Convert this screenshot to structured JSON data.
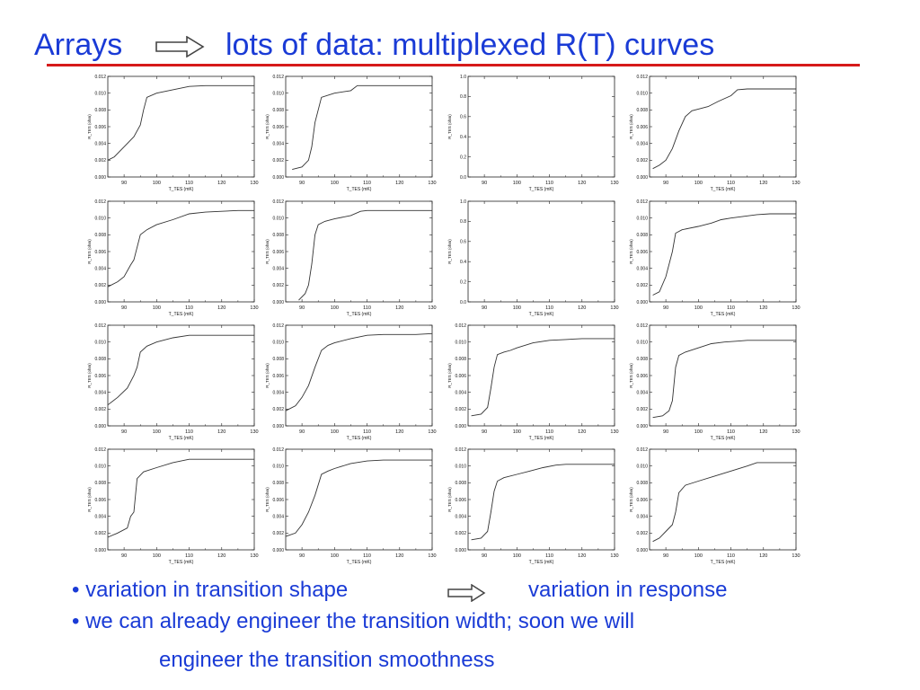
{
  "slide": {
    "title_left": "Arrays",
    "title_right": "lots of data: multiplexed R(T) curves",
    "bullet1_left": "• variation in transition shape",
    "bullet1_right": "variation in response",
    "bullet2": "• we can already engineer the transition width; soon we will",
    "bullet2_cont": "engineer the transition smoothness",
    "accent_color": "#1a3bd6",
    "rule_color": "#d61a1a",
    "arrow_icon": "right-arrow-icon"
  },
  "chart_data": [
    {
      "type": "line",
      "xlabel": "T_TES (mK)",
      "ylabel": "R_TES (ohm)",
      "xlim": [
        85,
        130
      ],
      "ylim": [
        0,
        0.012
      ],
      "xticks": [
        "90",
        "100",
        "110",
        "120",
        "130"
      ],
      "yticks": [
        "0.000",
        "0.002",
        "0.004",
        "0.006",
        "0.008",
        "0.010",
        "0.012"
      ],
      "x": [
        85,
        87,
        90,
        93,
        95,
        96,
        97,
        100,
        105,
        110,
        115,
        120,
        125,
        130
      ],
      "y": [
        0.002,
        0.0024,
        0.0036,
        0.0048,
        0.0062,
        0.008,
        0.0095,
        0.01,
        0.0104,
        0.0108,
        0.0109,
        0.0109,
        0.0109,
        0.0109
      ]
    },
    {
      "type": "line",
      "xlabel": "T_TES (mK)",
      "ylabel": "R_TES (ohm)",
      "xlim": [
        85,
        130
      ],
      "ylim": [
        0,
        0.012
      ],
      "xticks": [
        "90",
        "100",
        "110",
        "120",
        "130"
      ],
      "yticks": [
        "0.000",
        "0.002",
        "0.004",
        "0.006",
        "0.008",
        "0.010",
        "0.012"
      ],
      "x": [
        87,
        90,
        92,
        93,
        94,
        96,
        100,
        105,
        107,
        110,
        115,
        120,
        125,
        130
      ],
      "y": [
        0.0009,
        0.0012,
        0.002,
        0.0036,
        0.0065,
        0.0095,
        0.01,
        0.0103,
        0.0109,
        0.0109,
        0.0109,
        0.0109,
        0.0109,
        0.0109
      ]
    },
    {
      "type": "line",
      "xlabel": "T_TES (mK)",
      "ylabel": "R_TES (ohm)",
      "xlim": [
        85,
        130
      ],
      "ylim": [
        0,
        1.0
      ],
      "xticks": [
        "90",
        "100",
        "110",
        "120",
        "130"
      ],
      "yticks": [
        "0.0",
        "0.2",
        "0.4",
        "0.6",
        "0.8",
        "1.0"
      ],
      "x": [],
      "y": []
    },
    {
      "type": "line",
      "xlabel": "T_TES (mK)",
      "ylabel": "R_TES (ohm)",
      "xlim": [
        85,
        130
      ],
      "ylim": [
        0,
        0.012
      ],
      "xticks": [
        "90",
        "100",
        "110",
        "120",
        "130"
      ],
      "yticks": [
        "0.000",
        "0.002",
        "0.004",
        "0.006",
        "0.008",
        "0.010",
        "0.012"
      ],
      "x": [
        86,
        88,
        90,
        92,
        94,
        96,
        98,
        100,
        103,
        106,
        110,
        112,
        115,
        120,
        125,
        130
      ],
      "y": [
        0.001,
        0.0014,
        0.002,
        0.0034,
        0.0055,
        0.0072,
        0.0079,
        0.0081,
        0.0084,
        0.009,
        0.0097,
        0.0104,
        0.0105,
        0.0105,
        0.0105,
        0.0105
      ]
    },
    {
      "type": "line",
      "xlabel": "T_TES (mK)",
      "ylabel": "R_TES (ohm)",
      "xlim": [
        85,
        130
      ],
      "ylim": [
        0,
        0.012
      ],
      "xticks": [
        "90",
        "100",
        "110",
        "120",
        "130"
      ],
      "yticks": [
        "0.000",
        "0.002",
        "0.004",
        "0.006",
        "0.008",
        "0.010",
        "0.012"
      ],
      "x": [
        85,
        88,
        90,
        92,
        93,
        95,
        97,
        100,
        105,
        110,
        115,
        120,
        125,
        130
      ],
      "y": [
        0.0018,
        0.0024,
        0.003,
        0.0044,
        0.005,
        0.008,
        0.0086,
        0.0092,
        0.0098,
        0.0105,
        0.0107,
        0.0108,
        0.0109,
        0.0109
      ]
    },
    {
      "type": "line",
      "xlabel": "T_TES (mK)",
      "ylabel": "R_TES (ohm)",
      "xlim": [
        85,
        130
      ],
      "ylim": [
        0,
        0.012
      ],
      "xticks": [
        "90",
        "100",
        "110",
        "120",
        "130"
      ],
      "yticks": [
        "0.000",
        "0.002",
        "0.004",
        "0.006",
        "0.008",
        "0.010",
        "0.012"
      ],
      "x": [
        89,
        91,
        92,
        93,
        94,
        95,
        97,
        100,
        105,
        108,
        110,
        115,
        120,
        125,
        130
      ],
      "y": [
        0.0002,
        0.001,
        0.002,
        0.0045,
        0.008,
        0.0092,
        0.0096,
        0.0099,
        0.0103,
        0.0108,
        0.0109,
        0.0109,
        0.0109,
        0.0109,
        0.0109
      ]
    },
    {
      "type": "line",
      "xlabel": "T_TES (mK)",
      "ylabel": "R_TES (ohm)",
      "xlim": [
        85,
        130
      ],
      "ylim": [
        0,
        1.0
      ],
      "xticks": [
        "90",
        "100",
        "110",
        "120",
        "130"
      ],
      "yticks": [
        "0.0",
        "0.2",
        "0.4",
        "0.6",
        "0.8",
        "1.0"
      ],
      "x": [],
      "y": []
    },
    {
      "type": "line",
      "xlabel": "T_TES (mK)",
      "ylabel": "R_TES (ohm)",
      "xlim": [
        85,
        130
      ],
      "ylim": [
        0,
        0.012
      ],
      "xticks": [
        "90",
        "100",
        "110",
        "120",
        "130"
      ],
      "yticks": [
        "0.000",
        "0.002",
        "0.004",
        "0.006",
        "0.008",
        "0.010",
        "0.012"
      ],
      "x": [
        86,
        88,
        90,
        92,
        93,
        95,
        100,
        104,
        107,
        110,
        114,
        118,
        122,
        126,
        130
      ],
      "y": [
        0.0008,
        0.0012,
        0.003,
        0.006,
        0.0082,
        0.0086,
        0.009,
        0.0094,
        0.0098,
        0.01,
        0.0102,
        0.0104,
        0.0105,
        0.0105,
        0.0105
      ]
    },
    {
      "type": "line",
      "xlabel": "T_TES (mK)",
      "ylabel": "R_TES (ohm)",
      "xlim": [
        85,
        130
      ],
      "ylim": [
        0,
        0.012
      ],
      "xticks": [
        "90",
        "100",
        "110",
        "120",
        "130"
      ],
      "yticks": [
        "0.000",
        "0.002",
        "0.004",
        "0.006",
        "0.008",
        "0.010",
        "0.012"
      ],
      "x": [
        85,
        88,
        91,
        93,
        94,
        95,
        97,
        100,
        105,
        110,
        115,
        120,
        125,
        130
      ],
      "y": [
        0.0025,
        0.0034,
        0.0045,
        0.006,
        0.007,
        0.0088,
        0.0095,
        0.01,
        0.0105,
        0.0108,
        0.0108,
        0.0108,
        0.0108,
        0.0108
      ]
    },
    {
      "type": "line",
      "xlabel": "T_TES (mK)",
      "ylabel": "R_TES (ohm)",
      "xlim": [
        85,
        130
      ],
      "ylim": [
        0,
        0.012
      ],
      "xticks": [
        "90",
        "100",
        "110",
        "120",
        "130"
      ],
      "yticks": [
        "0.000",
        "0.002",
        "0.004",
        "0.006",
        "0.008",
        "0.010",
        "0.012"
      ],
      "x": [
        85,
        88,
        90,
        92,
        94,
        96,
        98,
        100,
        105,
        110,
        115,
        120,
        125,
        130
      ],
      "y": [
        0.0018,
        0.0024,
        0.0034,
        0.0048,
        0.007,
        0.009,
        0.0096,
        0.0099,
        0.0104,
        0.0108,
        0.0109,
        0.0109,
        0.0109,
        0.011
      ]
    },
    {
      "type": "line",
      "xlabel": "T_TES (mK)",
      "ylabel": "R_TES (ohm)",
      "xlim": [
        85,
        130
      ],
      "ylim": [
        0,
        0.012
      ],
      "xticks": [
        "90",
        "100",
        "110",
        "120",
        "130"
      ],
      "yticks": [
        "0.000",
        "0.002",
        "0.004",
        "0.006",
        "0.008",
        "0.010",
        "0.012"
      ],
      "x": [
        86,
        89,
        91,
        92,
        93,
        94,
        96,
        98,
        100,
        105,
        110,
        115,
        120,
        125,
        130
      ],
      "y": [
        0.0012,
        0.0014,
        0.0022,
        0.0045,
        0.007,
        0.0085,
        0.0088,
        0.009,
        0.0093,
        0.0099,
        0.0102,
        0.0103,
        0.0104,
        0.0104,
        0.0104
      ]
    },
    {
      "type": "line",
      "xlabel": "T_TES (mK)",
      "ylabel": "R_TES (ohm)",
      "xlim": [
        85,
        130
      ],
      "ylim": [
        0,
        0.012
      ],
      "xticks": [
        "90",
        "100",
        "110",
        "120",
        "130"
      ],
      "yticks": [
        "0.000",
        "0.002",
        "0.004",
        "0.006",
        "0.008",
        "0.010",
        "0.012"
      ],
      "x": [
        86,
        89,
        91,
        92,
        93,
        94,
        96,
        100,
        104,
        108,
        112,
        115,
        120,
        125,
        130
      ],
      "y": [
        0.001,
        0.0012,
        0.0018,
        0.003,
        0.007,
        0.0084,
        0.0088,
        0.0093,
        0.0098,
        0.01,
        0.0101,
        0.0102,
        0.0102,
        0.0102,
        0.0102
      ]
    },
    {
      "type": "line",
      "xlabel": "T_TES (mK)",
      "ylabel": "R_TES (ohm)",
      "xlim": [
        85,
        130
      ],
      "ylim": [
        0,
        0.012
      ],
      "xticks": [
        "90",
        "100",
        "110",
        "120",
        "130"
      ],
      "yticks": [
        "0.000",
        "0.002",
        "0.004",
        "0.006",
        "0.008",
        "0.010",
        "0.012"
      ],
      "x": [
        85,
        88,
        91,
        92,
        93,
        94,
        96,
        100,
        105,
        110,
        115,
        120,
        125,
        130
      ],
      "y": [
        0.0015,
        0.002,
        0.0026,
        0.004,
        0.0045,
        0.0085,
        0.0093,
        0.0098,
        0.0104,
        0.0108,
        0.0108,
        0.0108,
        0.0108,
        0.0108
      ]
    },
    {
      "type": "line",
      "xlabel": "T_TES (mK)",
      "ylabel": "R_TES (ohm)",
      "xlim": [
        85,
        130
      ],
      "ylim": [
        0,
        0.012
      ],
      "xticks": [
        "90",
        "100",
        "110",
        "120",
        "130"
      ],
      "yticks": [
        "0.000",
        "0.002",
        "0.004",
        "0.006",
        "0.008",
        "0.010",
        "0.012"
      ],
      "x": [
        85,
        88,
        90,
        92,
        94,
        96,
        98,
        100,
        105,
        110,
        115,
        120,
        125,
        130
      ],
      "y": [
        0.0016,
        0.002,
        0.003,
        0.0045,
        0.0065,
        0.009,
        0.0094,
        0.0097,
        0.0103,
        0.0106,
        0.0107,
        0.0107,
        0.0107,
        0.0107
      ]
    },
    {
      "type": "line",
      "xlabel": "T_TES (mK)",
      "ylabel": "R_TES (ohm)",
      "xlim": [
        85,
        130
      ],
      "ylim": [
        0,
        0.012
      ],
      "xticks": [
        "90",
        "100",
        "110",
        "120",
        "130"
      ],
      "yticks": [
        "0.000",
        "0.002",
        "0.004",
        "0.006",
        "0.008",
        "0.010",
        "0.012"
      ],
      "x": [
        86,
        89,
        91,
        92,
        93,
        94,
        96,
        100,
        104,
        108,
        112,
        115,
        120,
        125,
        130
      ],
      "y": [
        0.0012,
        0.0014,
        0.0022,
        0.0045,
        0.007,
        0.0082,
        0.0086,
        0.009,
        0.0094,
        0.0098,
        0.0101,
        0.0102,
        0.0102,
        0.0102,
        0.0102
      ]
    },
    {
      "type": "line",
      "xlabel": "T_TES (mK)",
      "ylabel": "R_TES (ohm)",
      "xlim": [
        85,
        130
      ],
      "ylim": [
        0,
        0.012
      ],
      "xticks": [
        "90",
        "100",
        "110",
        "120",
        "130"
      ],
      "yticks": [
        "0.000",
        "0.002",
        "0.004",
        "0.006",
        "0.008",
        "0.010",
        "0.012"
      ],
      "x": [
        86,
        88,
        90,
        92,
        93,
        94,
        96,
        100,
        105,
        110,
        115,
        118,
        120,
        125,
        130
      ],
      "y": [
        0.001,
        0.0014,
        0.0022,
        0.003,
        0.0045,
        0.0068,
        0.0077,
        0.0082,
        0.0088,
        0.0094,
        0.01,
        0.0104,
        0.0104,
        0.0104,
        0.0104
      ]
    }
  ]
}
